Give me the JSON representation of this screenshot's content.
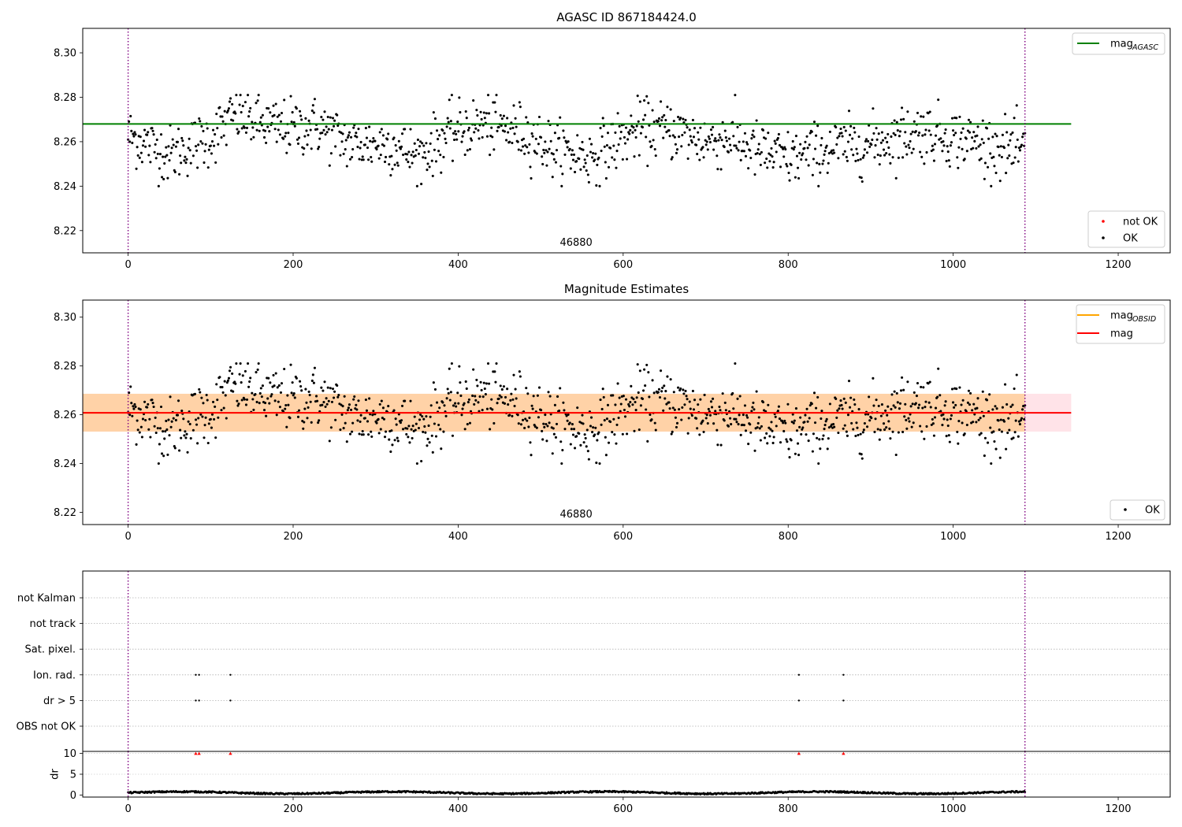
{
  "chart_data": [
    {
      "id": "agasc-panel",
      "type": "scatter",
      "title": "AGASC ID 867184424.0",
      "xlim": [
        -55,
        1263
      ],
      "ylim": [
        8.21,
        8.311
      ],
      "x_ticks": [
        0,
        200,
        400,
        600,
        800,
        1000,
        1200
      ],
      "y_ticks": [
        8.22,
        8.24,
        8.26,
        8.28,
        8.3
      ],
      "y_tick_labels": [
        "8.22",
        "8.24",
        "8.26",
        "8.28",
        "8.30"
      ],
      "vlines": [
        0,
        1087
      ],
      "obsid_label": "46880",
      "obsid_label_x": 543,
      "hlines": [
        {
          "name": "mag",
          "sub": "AGASC",
          "y": 8.268,
          "x0": -55,
          "x1": 1143,
          "color": "#008000"
        }
      ],
      "legend_top": [
        {
          "kind": "line",
          "label": "mag",
          "sub": "AGASC",
          "color": "#008000"
        }
      ],
      "legend_bottom": [
        {
          "kind": "point",
          "label": "not OK",
          "color": "#ff0000"
        },
        {
          "kind": "point",
          "label": "OK",
          "color": "#000000"
        }
      ],
      "series": [
        {
          "name": "OK",
          "color": "#000000",
          "n_points": 1087,
          "x_range": [
            0,
            1087
          ],
          "trend": [
            [
              0,
              8.263
            ],
            [
              50,
              8.254
            ],
            [
              100,
              8.262
            ],
            [
              130,
              8.272
            ],
            [
              180,
              8.266
            ],
            [
              230,
              8.267
            ],
            [
              270,
              8.259
            ],
            [
              320,
              8.259
            ],
            [
              350,
              8.253
            ],
            [
              390,
              8.264
            ],
            [
              430,
              8.268
            ],
            [
              480,
              8.264
            ],
            [
              520,
              8.256
            ],
            [
              560,
              8.253
            ],
            [
              620,
              8.266
            ],
            [
              660,
              8.265
            ],
            [
              700,
              8.26
            ],
            [
              730,
              8.262
            ],
            [
              760,
              8.256
            ],
            [
              800,
              8.252
            ],
            [
              850,
              8.257
            ],
            [
              900,
              8.259
            ],
            [
              960,
              8.265
            ],
            [
              1000,
              8.262
            ],
            [
              1050,
              8.258
            ],
            [
              1087,
              8.255
            ]
          ],
          "spread": 0.0065,
          "y_min": 8.24,
          "y_max": 8.281
        }
      ]
    },
    {
      "id": "estimates-panel",
      "type": "scatter",
      "title": "Magnitude Estimates",
      "xlim": [
        -55,
        1263
      ],
      "ylim": [
        8.215,
        8.307
      ],
      "x_ticks": [
        0,
        200,
        400,
        600,
        800,
        1000,
        1200
      ],
      "y_ticks": [
        8.22,
        8.24,
        8.26,
        8.28,
        8.3
      ],
      "y_tick_labels": [
        "8.22",
        "8.24",
        "8.26",
        "8.28",
        "8.30"
      ],
      "vlines": [
        0,
        1087
      ],
      "obsid_label": "46880",
      "obsid_label_x": 543,
      "bands": [
        {
          "name": "mag band",
          "y0": 8.2531,
          "y1": 8.2686,
          "x0": -55,
          "x1": 1143,
          "color": "#ffc0cb",
          "opacity": 0.45
        },
        {
          "name": "mag OBSID band",
          "y0": 8.2531,
          "y1": 8.2686,
          "x0": -55,
          "x1": 1087,
          "color": "#ffa500",
          "opacity": 0.28
        }
      ],
      "hlines": [
        {
          "name": "mag OBSID",
          "y": 8.2608,
          "x0": -55,
          "x1": 1087,
          "color": "#ffa500"
        },
        {
          "name": "mag",
          "y": 8.2608,
          "x0": -55,
          "x1": 1143,
          "color": "#ff0000"
        }
      ],
      "legend_top": [
        {
          "kind": "line",
          "label": "mag",
          "sub": "OBSID",
          "color": "#ffa500"
        },
        {
          "kind": "line",
          "label": "mag",
          "sub": "",
          "color": "#ff0000"
        }
      ],
      "legend_bottom": [
        {
          "kind": "point",
          "label": "OK",
          "color": "#000000"
        }
      ],
      "series": [
        {
          "name": "OK",
          "color": "#000000",
          "n_points": 1087,
          "x_range": [
            0,
            1087
          ],
          "same_as_panel": "agasc-panel"
        }
      ]
    },
    {
      "id": "flags-panel",
      "type": "scatter",
      "xlim": [
        -55,
        1263
      ],
      "categories": [
        "OBS not OK",
        "dr > 5",
        "Ion. rad.",
        "Sat. pixel.",
        "not track",
        "not Kalman"
      ],
      "vlines": [
        0,
        1087
      ],
      "series": [
        {
          "name": "dr > 5",
          "x": [
            82,
            86,
            124,
            813,
            867
          ]
        },
        {
          "name": "Ion. rad.",
          "x": [
            82,
            86,
            124,
            813,
            867
          ]
        }
      ]
    },
    {
      "id": "dr-panel",
      "type": "scatter",
      "xlim": [
        -55,
        1263
      ],
      "ylim": [
        -0.5,
        10.5
      ],
      "ylabel": "dr",
      "x_ticks": [
        0,
        200,
        400,
        600,
        800,
        1000,
        1200
      ],
      "y_ticks": [
        0,
        5,
        10
      ],
      "y_tick_labels": [
        "0",
        "5",
        "10"
      ],
      "vlines": [
        0,
        1087
      ],
      "series": [
        {
          "name": "dr",
          "color": "#000000",
          "n_points": 1087,
          "x_range": [
            0,
            1087
          ],
          "y_range": [
            0.1,
            1.0
          ]
        },
        {
          "name": "dr clipped",
          "color": "#ff0000",
          "marker": "triangle",
          "x": [
            82,
            86,
            124,
            813,
            867
          ],
          "y": [
            10,
            10,
            10,
            10,
            10
          ]
        }
      ]
    }
  ]
}
